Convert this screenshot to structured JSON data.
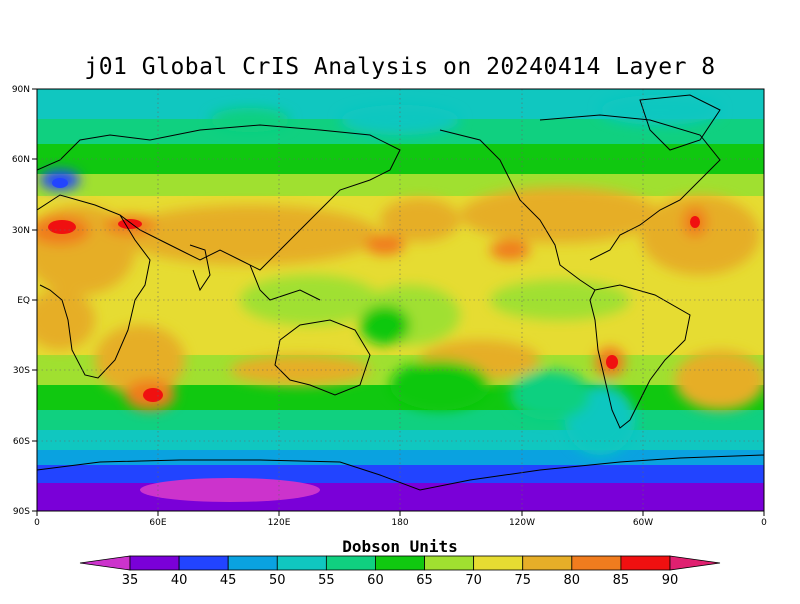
{
  "title": "j01 Global CrIS Analysis on 20240414 Layer 8",
  "lat_labels": [
    "90N",
    "60N",
    "30N",
    "EQ",
    "30S",
    "60S",
    "90S"
  ],
  "lon_labels": [
    "0",
    "60E",
    "120E",
    "180",
    "120W",
    "60W",
    "0"
  ],
  "colorbar": {
    "title": "Dobson Units",
    "labels": [
      "35",
      "40",
      "45",
      "50",
      "55",
      "60",
      "65",
      "70",
      "75",
      "80",
      "85",
      "90"
    ],
    "colors": [
      "#cc33cc",
      "#7a00d8",
      "#2244ff",
      "#0aa2e0",
      "#10c7c0",
      "#10d080",
      "#10c810",
      "#a0e030",
      "#e6dc32",
      "#e6ae28",
      "#f07c1e",
      "#f01010",
      "#e02070"
    ]
  }
}
